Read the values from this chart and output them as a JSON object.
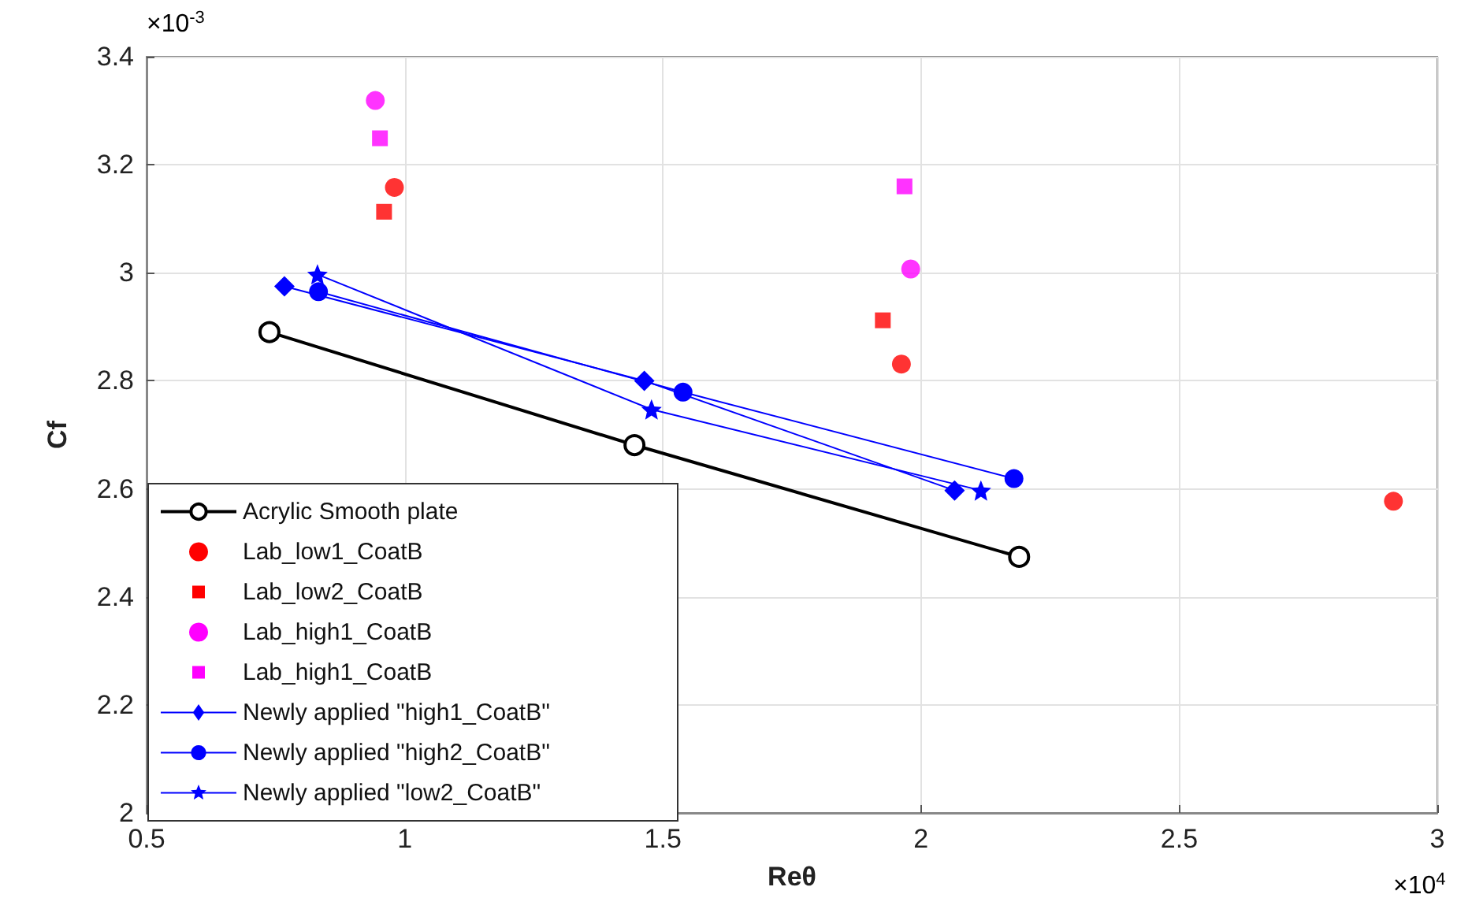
{
  "chart_data": {
    "type": "scatter",
    "xlabel": "Reθ",
    "ylabel": "Cf",
    "annotations": [
      "×10$^{-3}$",
      "×10$^{4}$"
    ],
    "xlim": [
      0.5,
      3
    ],
    "xticks": [
      0.5,
      1,
      1.5,
      2,
      2.5,
      3
    ],
    "ylim": [
      2,
      3.4
    ],
    "yticks": [
      2,
      2.2,
      2.4,
      2.6,
      2.8,
      3,
      3.2,
      3.4
    ],
    "grid": true,
    "legend": "bottom left",
    "series": [
      {
        "name": "Acrylic Smooth plate",
        "type": "line",
        "marker": "circle",
        "color": "#000000",
        "x": [
          0.738,
          1.445,
          2.19
        ],
        "values": [
          2.89,
          2.681,
          2.474
        ]
      },
      {
        "name": "Lab_low1_CoatB",
        "marker": "circle",
        "color": "#ff0000",
        "x": [
          0.98,
          1.962,
          2.915
        ],
        "values": [
          3.158,
          2.831,
          2.577
        ]
      },
      {
        "name": "Lab_low2_CoatB",
        "marker": "square",
        "color": "#ff0000",
        "x": [
          0.96,
          1.926
        ],
        "values": [
          3.113,
          2.912
        ]
      },
      {
        "name": "Lab_high1_CoatB",
        "marker": "circle",
        "color": "#ff00ff",
        "x": [
          0.943,
          1.98
        ],
        "values": [
          3.319,
          3.007
        ]
      },
      {
        "name": "Lab_high1_CoatB",
        "marker": "square",
        "color": "#ff00ff",
        "x": [
          0.952,
          1.968
        ],
        "values": [
          3.249,
          3.16
        ]
      },
      {
        "name": "Newly applied \"high1_CoatB\"",
        "type": "line",
        "marker": "diamond",
        "color": "#0000ff",
        "x": [
          0.767,
          1.464,
          2.065
        ],
        "values": [
          2.975,
          2.8,
          2.597
        ]
      },
      {
        "name": "Newly applied \"high2_CoatB\"",
        "type": "line",
        "marker": "circle",
        "color": "#0000ff",
        "x": [
          0.833,
          1.539,
          2.18
        ],
        "values": [
          2.965,
          2.779,
          2.619
        ]
      },
      {
        "name": "Newly applied \"low2_CoatB\"",
        "type": "line",
        "marker": "star",
        "color": "#0000ff",
        "x": [
          0.831,
          1.478,
          2.116
        ],
        "values": [
          2.997,
          2.747,
          2.597
        ]
      }
    ]
  }
}
